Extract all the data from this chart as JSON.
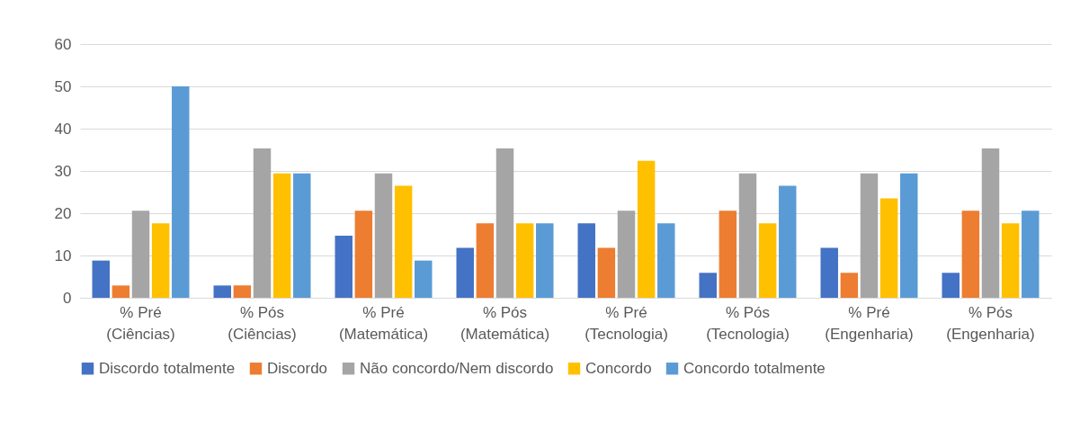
{
  "chart_data": {
    "type": "bar",
    "categories": [
      "% Pré\n(Ciências)",
      "% Pós\n(Ciências)",
      "% Pré\n(Matemática)",
      "% Pós\n(Matemática)",
      "% Pré\n(Tecnologia)",
      "% Pós\n(Tecnologia)",
      "% Pré\n(Engenharia)",
      "% Pós\n(Engenharia)"
    ],
    "series": [
      {
        "name": "Discordo totalmente",
        "color": "#4472c4",
        "values": [
          8.8,
          2.9,
          14.7,
          11.8,
          17.6,
          5.9,
          11.8,
          5.9
        ]
      },
      {
        "name": "Discordo",
        "color": "#ed7d31",
        "values": [
          2.9,
          2.9,
          20.6,
          17.6,
          11.8,
          20.6,
          5.9,
          20.6
        ]
      },
      {
        "name": "Não concordo/Nem discordo",
        "color": "#a5a5a5",
        "values": [
          20.6,
          35.3,
          29.4,
          35.3,
          20.6,
          29.4,
          29.4,
          35.3
        ]
      },
      {
        "name": "Concordo",
        "color": "#ffc000",
        "values": [
          17.6,
          29.4,
          26.5,
          17.6,
          32.4,
          17.6,
          23.5,
          17.6
        ]
      },
      {
        "name": "Concordo totalmente",
        "color": "#5b9bd5",
        "values": [
          50,
          29.4,
          8.8,
          17.6,
          17.6,
          26.5,
          29.4,
          20.6
        ]
      }
    ],
    "ylim": [
      0,
      60
    ],
    "yticks": [
      0,
      10,
      20,
      30,
      40,
      50,
      60
    ],
    "grid": "y",
    "legend": "bottom"
  }
}
